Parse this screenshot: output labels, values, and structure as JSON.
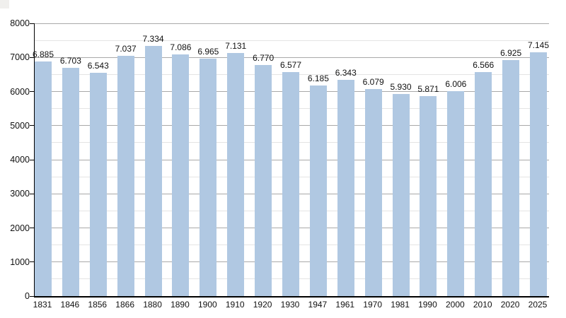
{
  "page": {
    "background_color": "#ffffff"
  },
  "corner_artifact": {
    "color": "#f0efed"
  },
  "chart_data": {
    "type": "bar",
    "title": "",
    "xlabel": "",
    "ylabel": "",
    "categories": [
      "1831",
      "1846",
      "1856",
      "1866",
      "1880",
      "1890",
      "1900",
      "1910",
      "1920",
      "1930",
      "1947",
      "1961",
      "1970",
      "1981",
      "1990",
      "2000",
      "2010",
      "2020",
      "2025"
    ],
    "values": [
      6885,
      6703,
      6543,
      7037,
      7334,
      7086,
      6965,
      7131,
      6770,
      6577,
      6185,
      6343,
      6079,
      5930,
      5871,
      6006,
      6566,
      6925,
      7145
    ],
    "value_labels": [
      "6.885",
      "6.703",
      "6.543",
      "7.037",
      "7.334",
      "7.086",
      "6.965",
      "7.131",
      "6.770",
      "6.577",
      "6.185",
      "6.343",
      "6.079",
      "5.930",
      "5.871",
      "6.006",
      "6.566",
      "6.925",
      "7.145"
    ],
    "ylim": [
      0,
      8000
    ],
    "y_major_step": 1000,
    "y_minor_step": 500,
    "y_tick_labels": [
      "0",
      "1000",
      "2000",
      "3000",
      "4000",
      "5000",
      "6000",
      "7000",
      "8000"
    ],
    "grid": "on",
    "legend": "none",
    "colors": {
      "bar_fill": "#b0c8e2",
      "major_gridline": "#a9a9a9",
      "minor_gridline": "#e4e4e4",
      "axis": "#000000",
      "text": "#111111"
    }
  }
}
